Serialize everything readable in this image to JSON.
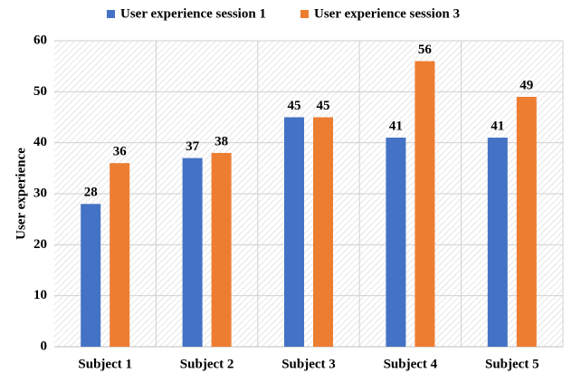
{
  "chart_data": {
    "type": "bar",
    "ylabel": "User experience",
    "categories": [
      "Subject 1",
      "Subject 2",
      "Subject 3",
      "Subject 4",
      "Subject 5"
    ],
    "series": [
      {
        "name": "User experience session 1",
        "color": "#4472c4",
        "values": [
          28,
          37,
          45,
          41,
          41
        ]
      },
      {
        "name": "User experience session 3",
        "color": "#ed7d31",
        "values": [
          36,
          38,
          45,
          56,
          49
        ]
      }
    ],
    "ylim": [
      0,
      60
    ],
    "yticks": [
      0,
      10,
      20,
      30,
      40,
      50,
      60
    ],
    "grid": true,
    "legend": "top"
  }
}
